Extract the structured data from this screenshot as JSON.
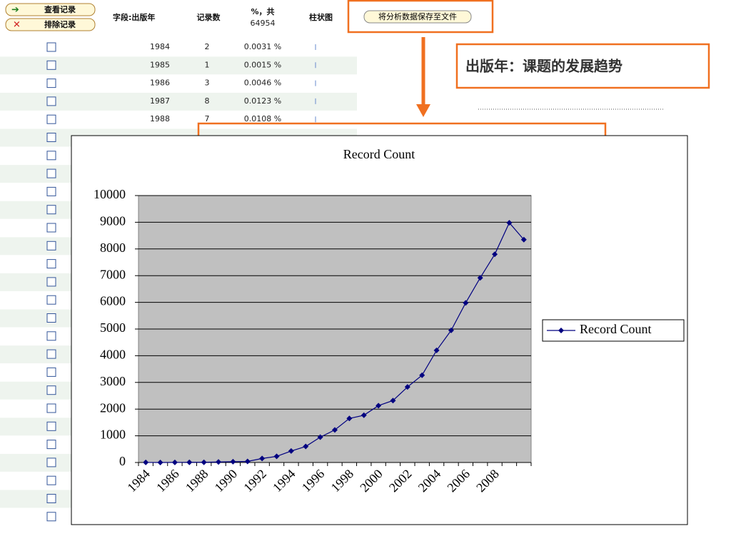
{
  "toolbar": {
    "view_button": "查看记录",
    "exclude_button": "排除记录",
    "field_header": "字段:出版年",
    "count_header": "记录数",
    "percent_header": "%，共",
    "total": 64954,
    "bar_header": "柱状图",
    "save_button": "将分析数据保存至文件"
  },
  "table": {
    "rows": [
      {
        "year": 1984,
        "count": 2,
        "percent": "0.0031 %"
      },
      {
        "year": 1985,
        "count": 1,
        "percent": "0.0015 %"
      },
      {
        "year": 1986,
        "count": 3,
        "percent": "0.0046 %"
      },
      {
        "year": 1987,
        "count": 8,
        "percent": "0.0123 %"
      },
      {
        "year": 1988,
        "count": 7,
        "percent": "0.0108 %"
      }
    ]
  },
  "callout": "出版年：课题的发展趋势",
  "chart_data": {
    "type": "line",
    "title": "Record Count",
    "categories": [
      "1984",
      null,
      "1986",
      null,
      "1988",
      null,
      "1990",
      null,
      "1992",
      null,
      "1994",
      null,
      "1996",
      null,
      "1998",
      null,
      "2000",
      null,
      "2002",
      null,
      "2004",
      null,
      "2006",
      null,
      "2008",
      null,
      null
    ],
    "series": [
      {
        "name": "Record Count",
        "color": "#000080",
        "values": [
          2,
          1,
          3,
          8,
          7,
          20,
          30,
          40,
          150,
          230,
          430,
          600,
          950,
          1220,
          1650,
          1770,
          2130,
          2320,
          2830,
          3270,
          4200,
          4950,
          5980,
          6920,
          7800,
          8980,
          8350
        ]
      }
    ],
    "ylim": [
      0,
      10000
    ],
    "yticks": [
      0,
      1000,
      2000,
      3000,
      4000,
      5000,
      6000,
      7000,
      8000,
      9000,
      10000
    ],
    "grid": true,
    "legend": "right"
  }
}
